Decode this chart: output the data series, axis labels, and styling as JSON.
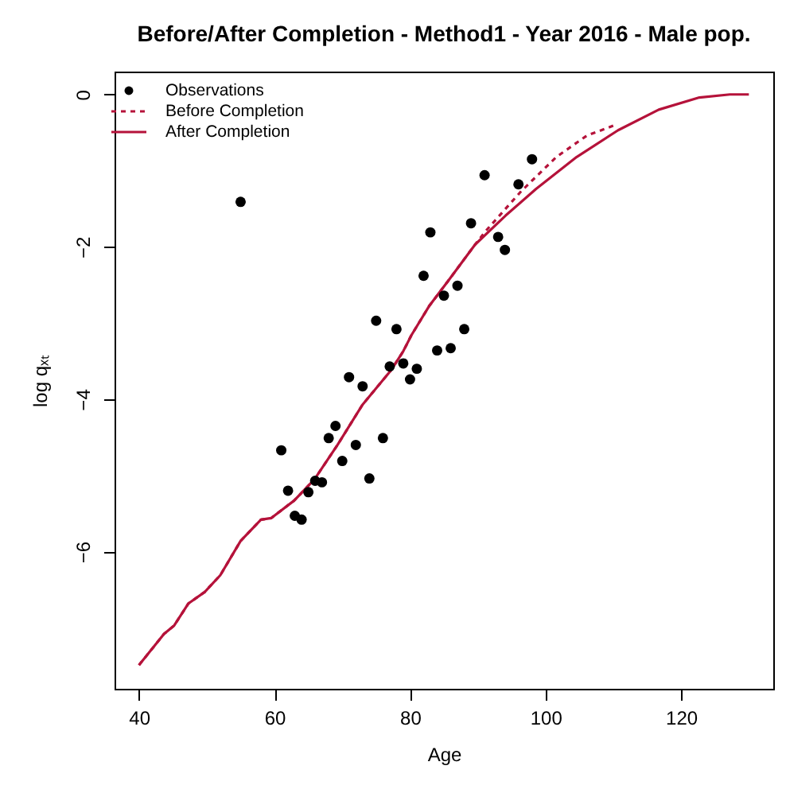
{
  "chart_data": {
    "type": "line",
    "title": "Before/After Completion - Method1 - Year 2016 - Male pop.",
    "xlabel": "Age",
    "ylabel": "log qₓₜ",
    "xlim": [
      36.4,
      133.6
    ],
    "ylim": [
      -7.8,
      0.3
    ],
    "xticks": [
      40,
      60,
      80,
      100,
      120
    ],
    "yticks": [
      0,
      -2,
      -4,
      -6
    ],
    "grid": false,
    "legend": "top left",
    "series": [
      {
        "name": "Observations",
        "type": "scatter",
        "marker": "circle",
        "color": "#000000",
        "x": [
          55,
          61,
          62,
          63,
          64,
          65,
          66,
          67,
          68,
          69,
          70,
          71,
          72,
          73,
          74,
          75,
          76,
          77,
          78,
          79,
          80,
          81,
          82,
          83,
          84,
          85,
          86,
          87,
          88,
          89,
          91,
          93,
          94,
          96,
          98
        ],
        "values": [
          -1.41,
          -4.67,
          -5.2,
          -5.53,
          -5.58,
          -5.22,
          -5.07,
          -5.09,
          -4.51,
          -4.35,
          -4.81,
          -3.71,
          -4.6,
          -3.83,
          -5.04,
          -2.97,
          -4.51,
          -3.57,
          -3.08,
          -3.53,
          -3.74,
          -3.6,
          -2.38,
          -1.81,
          -3.36,
          -2.64,
          -3.33,
          -2.51,
          -3.08,
          -1.69,
          -1.06,
          -1.87,
          -2.04,
          -1.18,
          -0.85
        ]
      },
      {
        "name": "Before Completion",
        "type": "line",
        "line_style": "dashed",
        "color": "#b5123a",
        "x": [
          40,
          43.7,
          45.2,
          47.3,
          49.7,
          52,
          55,
          58,
          59.5,
          62.9,
          65.9,
          69.3,
          73,
          77.2,
          79,
          80.2,
          82.8,
          85.6,
          89.6,
          91.1,
          96.4,
          101.6,
          106.1,
          110.3
        ],
        "values": [
          -7.49,
          -7.08,
          -6.97,
          -6.68,
          -6.53,
          -6.31,
          -5.86,
          -5.58,
          -5.56,
          -5.33,
          -5.05,
          -4.6,
          -4.07,
          -3.62,
          -3.37,
          -3.16,
          -2.78,
          -2.45,
          -1.97,
          -1.8,
          -1.27,
          -0.82,
          -0.54,
          -0.4
        ]
      },
      {
        "name": "After Completion",
        "type": "line",
        "line_style": "solid",
        "color": "#b5123a",
        "x": [
          40,
          43.7,
          45.2,
          47.3,
          49.7,
          52,
          55,
          58,
          59.5,
          62.9,
          65.9,
          69.3,
          73,
          77.2,
          79,
          80.2,
          82.8,
          85.6,
          89.6,
          94.1,
          98.6,
          104.6,
          110.7,
          116.7,
          122.7,
          127.2,
          130
        ],
        "values": [
          -7.49,
          -7.08,
          -6.97,
          -6.68,
          -6.53,
          -6.31,
          -5.86,
          -5.58,
          -5.56,
          -5.33,
          -5.05,
          -4.6,
          -4.07,
          -3.62,
          -3.37,
          -3.16,
          -2.78,
          -2.45,
          -1.97,
          -1.59,
          -1.24,
          -0.82,
          -0.47,
          -0.2,
          -0.04,
          0,
          0
        ]
      }
    ]
  }
}
